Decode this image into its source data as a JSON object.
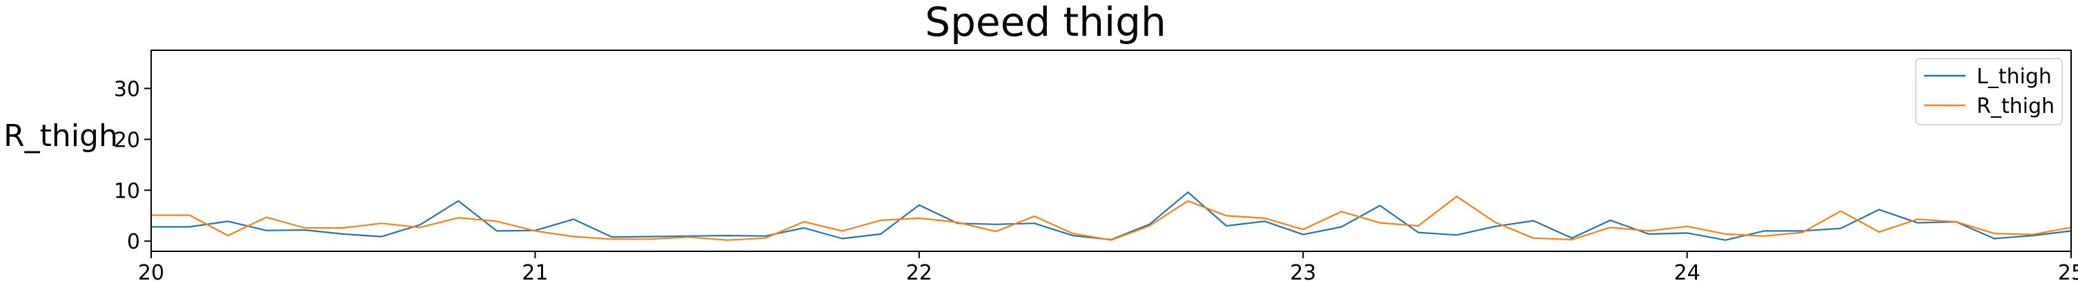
{
  "chart_data": {
    "type": "line",
    "title": "Speed thigh",
    "xlabel": "",
    "ylabel": "R_thigh",
    "xlim": [
      20,
      25
    ],
    "ylim": [
      -2,
      37.5
    ],
    "xticks": [
      20,
      21,
      22,
      23,
      24,
      25
    ],
    "yticks": [
      0,
      10,
      20,
      30
    ],
    "grid": false,
    "legend_position": "top-right",
    "x": [
      20.0,
      20.1,
      20.2,
      20.3,
      20.4,
      20.5,
      20.6,
      20.7,
      20.8,
      20.9,
      21.0,
      21.1,
      21.2,
      21.3,
      21.4,
      21.5,
      21.6,
      21.7,
      21.8,
      21.9,
      22.0,
      22.1,
      22.2,
      22.3,
      22.4,
      22.5,
      22.6,
      22.7,
      22.8,
      22.9,
      23.0,
      23.1,
      23.2,
      23.3,
      23.4,
      23.5,
      23.6,
      23.7,
      23.8,
      23.9,
      24.0,
      24.1,
      24.2,
      24.3,
      24.4,
      24.5,
      24.6,
      24.7,
      24.8,
      24.9,
      25.0
    ],
    "series": [
      {
        "name": "L_thigh",
        "color": "#1f77b4",
        "values": [
          2.8,
          2.8,
          3.9,
          2.1,
          2.2,
          1.4,
          0.9,
          3.2,
          7.9,
          2.0,
          2.1,
          4.3,
          0.8,
          0.9,
          1.0,
          1.1,
          1.0,
          2.6,
          0.5,
          1.4,
          7.1,
          3.5,
          3.3,
          3.5,
          1.1,
          0.3,
          3.3,
          9.6,
          3.0,
          3.9,
          1.3,
          2.8,
          7.0,
          1.7,
          1.2,
          2.9,
          4.0,
          0.6,
          4.1,
          1.4,
          1.6,
          0.2,
          2.0,
          2.0,
          2.5,
          6.2,
          3.6,
          3.8,
          0.5,
          1.1,
          2.0
        ]
      },
      {
        "name": "R_thigh",
        "color": "#ff7f0e",
        "values": [
          5.1,
          5.1,
          1.1,
          4.7,
          2.6,
          2.6,
          3.5,
          2.7,
          4.6,
          3.9,
          2.0,
          0.9,
          0.4,
          0.4,
          0.8,
          0.2,
          0.6,
          3.8,
          2.0,
          4.1,
          4.5,
          3.7,
          1.9,
          4.9,
          1.5,
          0.2,
          3.0,
          7.9,
          5.0,
          4.5,
          2.3,
          5.8,
          3.6,
          3.0,
          8.8,
          3.7,
          0.6,
          0.3,
          2.7,
          2.0,
          2.9,
          1.4,
          1.0,
          1.7,
          5.9,
          1.8,
          4.3,
          3.8,
          1.5,
          1.3,
          2.7
        ]
      }
    ]
  }
}
